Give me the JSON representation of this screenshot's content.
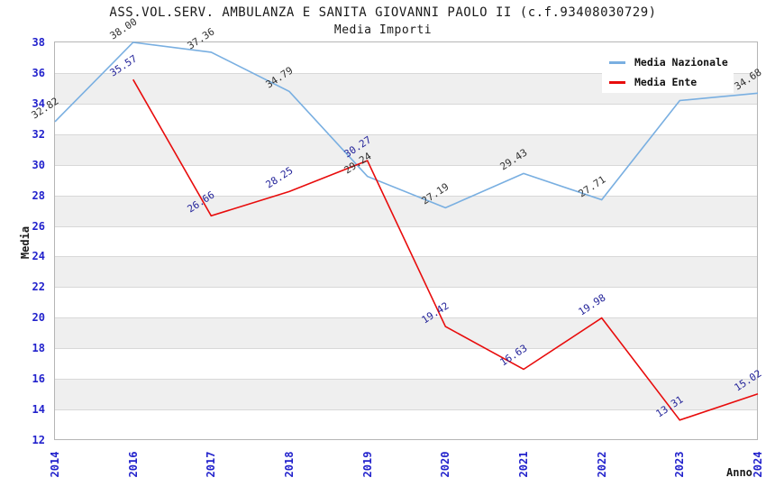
{
  "chart_data": {
    "type": "line",
    "title": "ASS.VOL.SERV. AMBULANZA E SANITA GIOVANNI PAOLO II (c.f.93408030729)",
    "subtitle": "Media Importi",
    "xlabel": "Anno",
    "ylabel": "Media",
    "categories": [
      "2014",
      "2016",
      "2017",
      "2018",
      "2019",
      "2020",
      "2021",
      "2022",
      "2023",
      "2024"
    ],
    "ylim": [
      12,
      38
    ],
    "yticks": [
      12,
      14,
      16,
      18,
      20,
      22,
      24,
      26,
      28,
      30,
      32,
      34,
      36,
      38
    ],
    "grid": true,
    "stripe_color": "#efefef",
    "gridline_color": "#d8d8d8",
    "tick_label_color": "#2222cc",
    "legend_position": "top-right",
    "series": [
      {
        "name": "Media Nazionale",
        "color": "#79AFE1",
        "label_color": "#303030",
        "values": [
          32.82,
          38.0,
          37.36,
          34.79,
          29.24,
          27.19,
          29.43,
          27.71,
          34.2,
          34.68
        ],
        "labels": [
          "32.82",
          "38.00",
          "37.36",
          "34.79",
          "29.24",
          "27.19",
          "29.43",
          "27.71",
          "",
          "34.68"
        ]
      },
      {
        "name": "Media Ente",
        "color": "#E80C0C",
        "label_color": "#222299",
        "values": [
          null,
          35.57,
          26.66,
          28.25,
          30.27,
          19.42,
          16.63,
          19.98,
          13.31,
          15.02
        ],
        "labels": [
          "",
          "35.57",
          "26.66",
          "28.25",
          "30.27",
          "19.42",
          "16.63",
          "19.98",
          "13.31",
          "15.02"
        ]
      }
    ]
  }
}
